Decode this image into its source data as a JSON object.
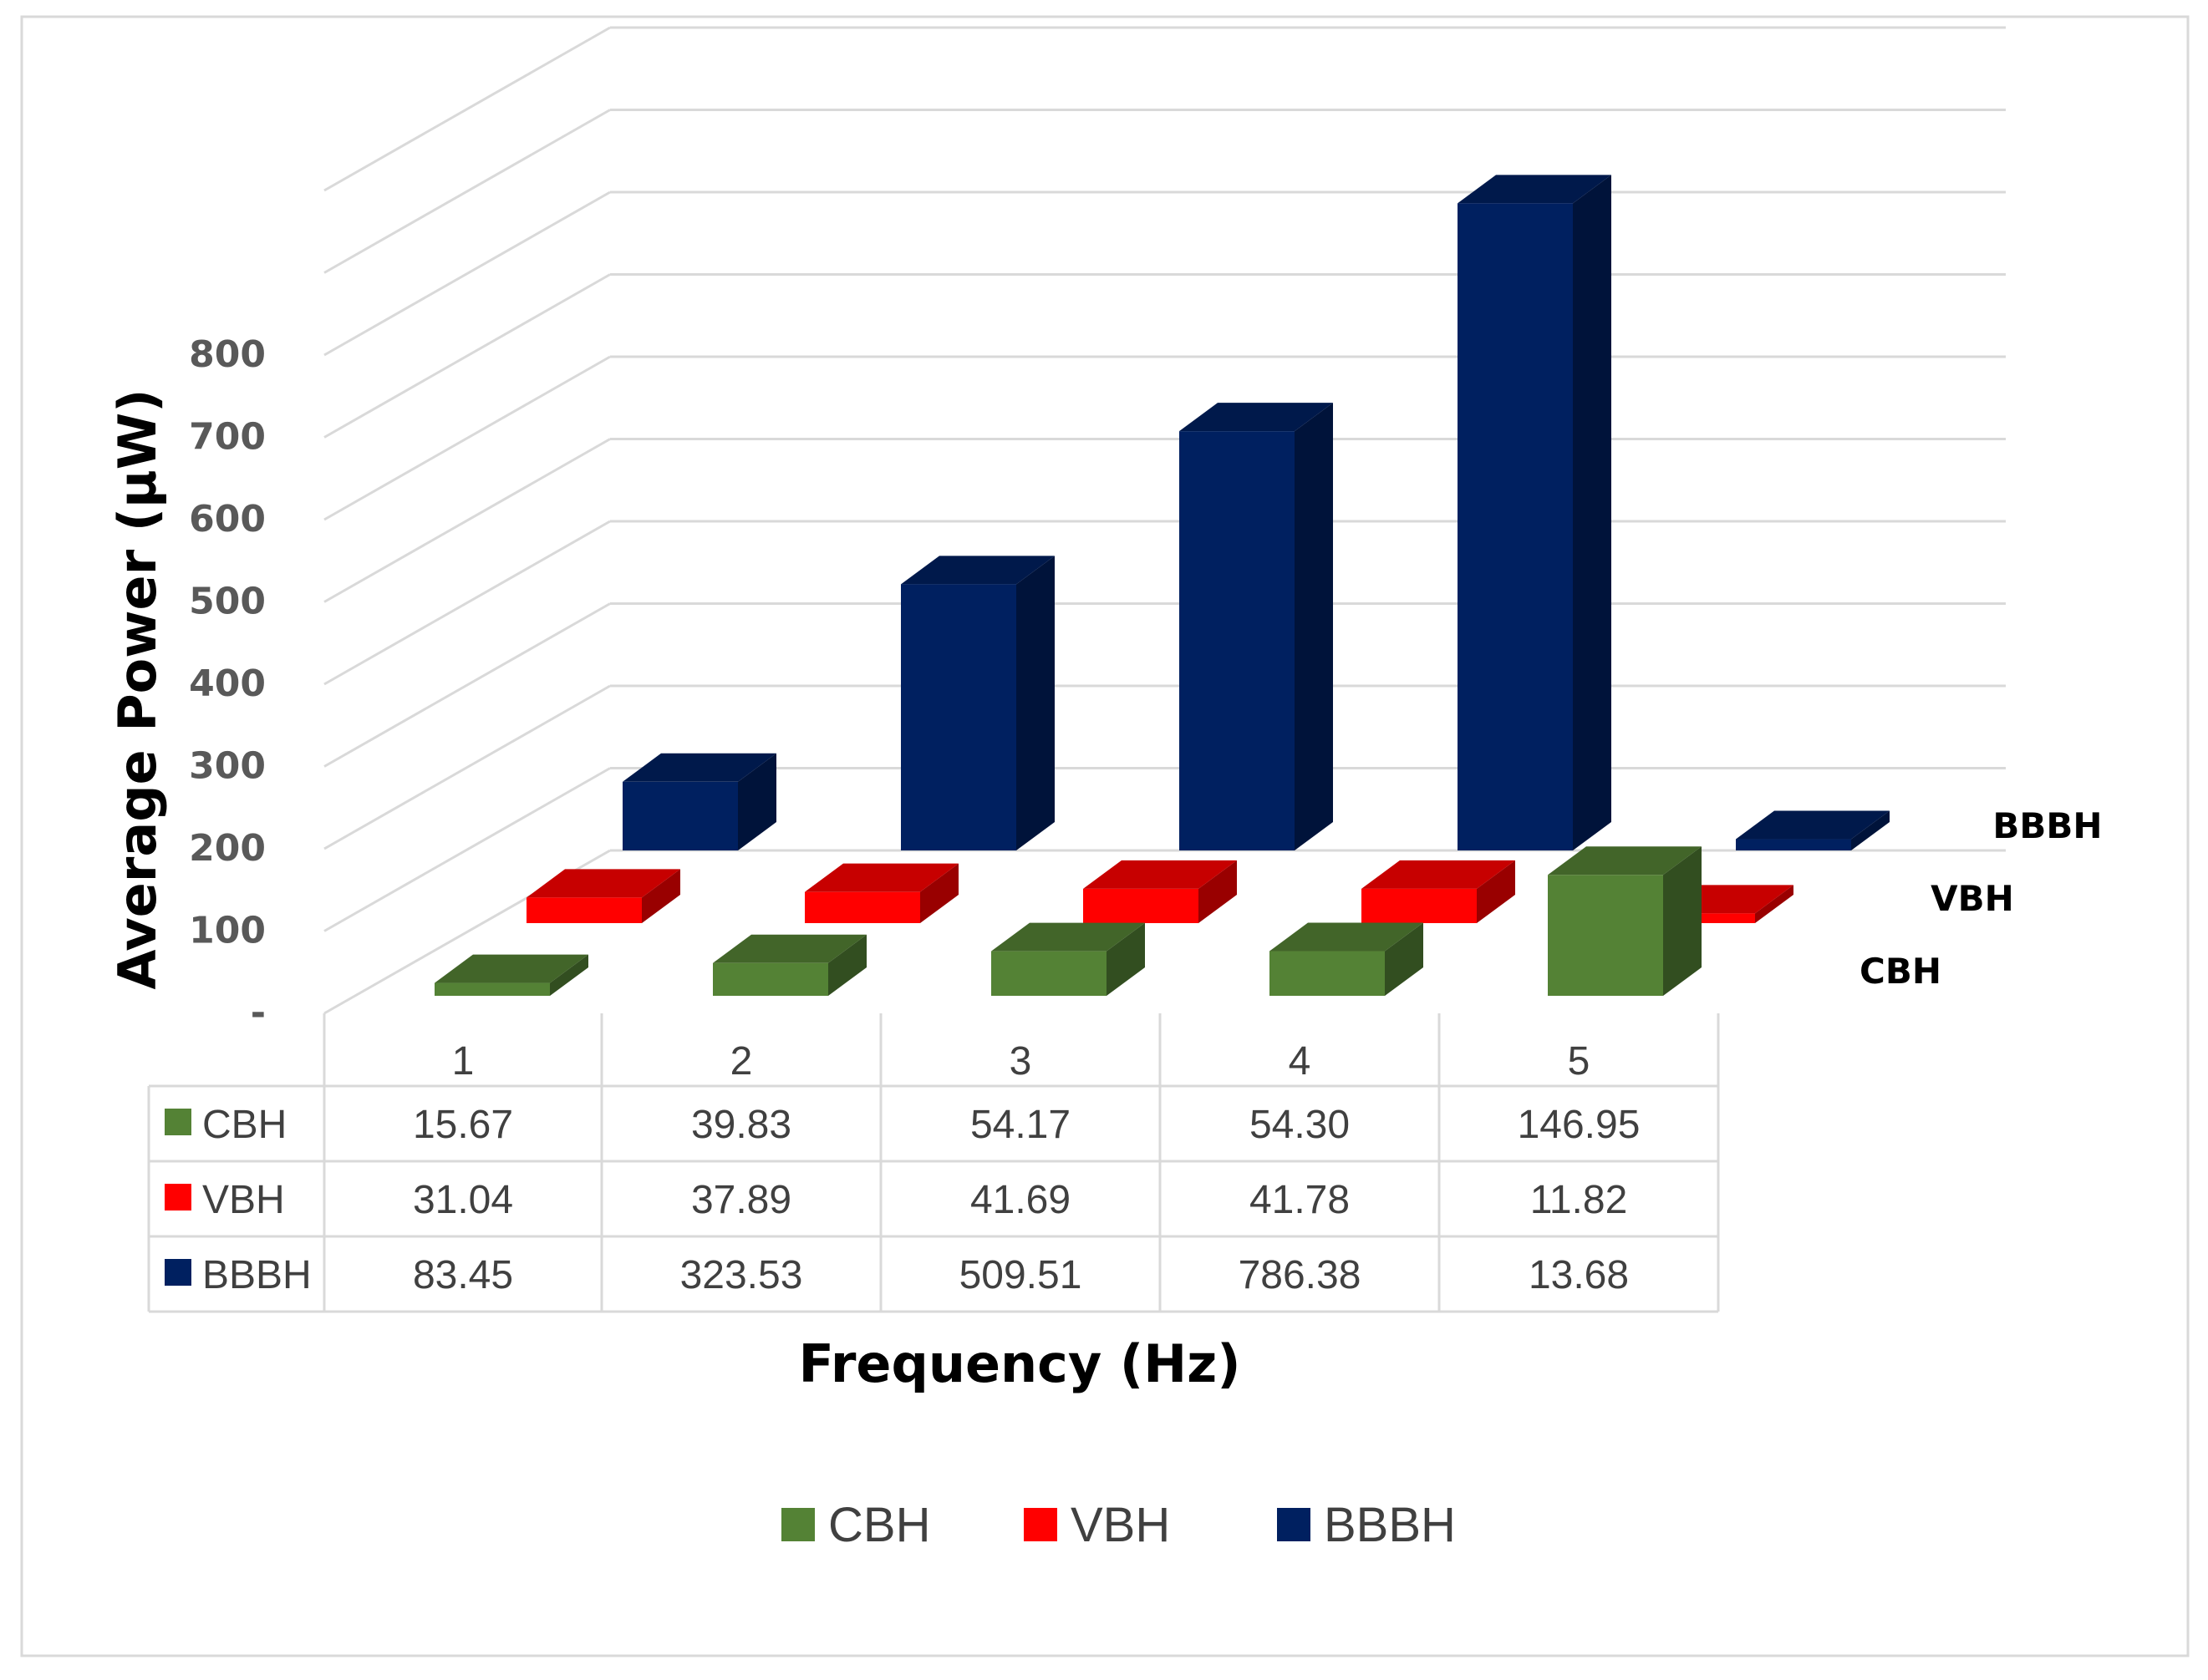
{
  "chart_data": {
    "type": "bar",
    "subtype": "3d-column-with-data-table",
    "title": "",
    "xlabel": "Frequency (Hz)",
    "ylabel": "Average Power (µW)",
    "ylim": [
      0,
      1000
    ],
    "yticks": [
      "-",
      "100",
      "200",
      "300",
      "400",
      "500",
      "600",
      "700",
      "800"
    ],
    "categories": [
      "1",
      "2",
      "3",
      "4",
      "5"
    ],
    "series": [
      {
        "name": "CBH",
        "color": "#548235",
        "values": [
          15.67,
          39.83,
          54.17,
          54.3,
          146.95
        ],
        "display": [
          "15.67",
          "39.83",
          "54.17",
          "54.30",
          "146.95"
        ]
      },
      {
        "name": "VBH",
        "color": "#ff0000",
        "values": [
          31.04,
          37.89,
          41.69,
          41.78,
          11.82
        ],
        "display": [
          "31.04",
          "37.89",
          "41.69",
          "41.78",
          "11.82"
        ]
      },
      {
        "name": "BBBH",
        "color": "#002060",
        "values": [
          83.45,
          323.53,
          509.51,
          786.38,
          13.68
        ],
        "display": [
          "83.45",
          "323.53",
          "509.51",
          "786.38",
          "13.68"
        ]
      }
    ],
    "depth_labels": [
      "CBH",
      "VBH",
      "BBBH"
    ],
    "legend": [
      "CBH",
      "VBH",
      "BBBH"
    ],
    "legend_position": "bottom",
    "grid": true
  }
}
